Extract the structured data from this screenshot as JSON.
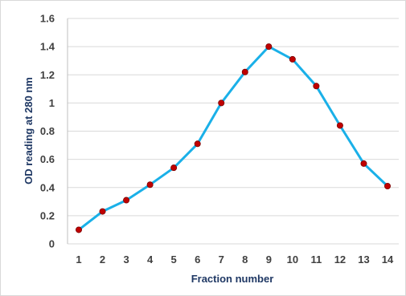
{
  "chart_data": {
    "type": "line",
    "title": "",
    "xlabel": "Fraction number",
    "ylabel": "OD reading at 280 nm",
    "categories": [
      "1",
      "2",
      "3",
      "4",
      "5",
      "6",
      "7",
      "8",
      "9",
      "10",
      "11",
      "12",
      "13",
      "14"
    ],
    "series": [
      {
        "values": [
          0.1,
          0.23,
          0.31,
          0.42,
          0.54,
          0.71,
          1.0,
          1.22,
          1.4,
          1.31,
          1.12,
          0.84,
          0.57,
          0.41
        ]
      }
    ],
    "yticks": [
      "0",
      "0.2",
      "0.4",
      "0.6",
      "0.8",
      "1",
      "1.2",
      "1.4",
      "1.6"
    ],
    "ylim": [
      0,
      1.6
    ],
    "grid": "horizontal",
    "legend": "none",
    "colors": {
      "line": "#1ab0e8",
      "marker": "#c00000",
      "gridline": "#d9d9d9",
      "axis_title": "#1f3864"
    }
  }
}
